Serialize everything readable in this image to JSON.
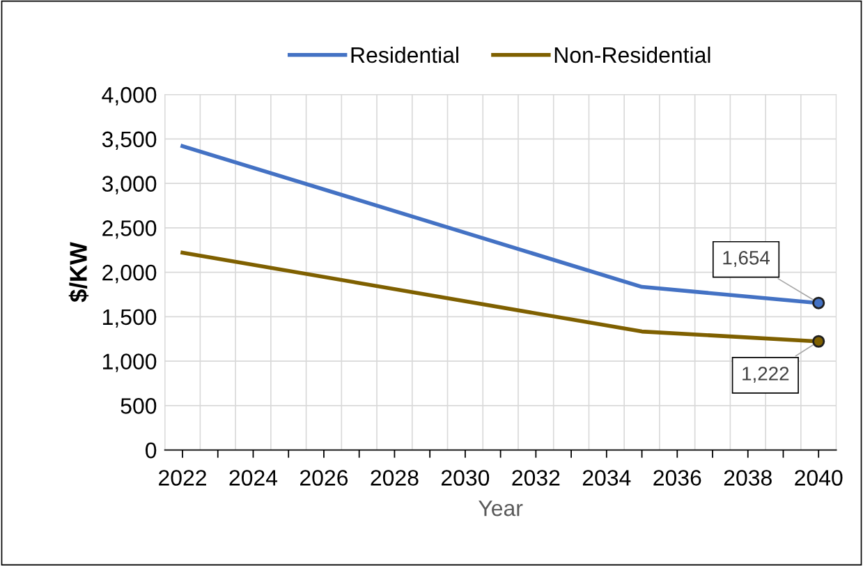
{
  "chart_data": {
    "type": "line",
    "xlabel": "Year",
    "ylabel": "$/KW",
    "series": [
      {
        "name": "Residential",
        "color": "#4472c4",
        "x": [
          2022,
          2035,
          2040
        ],
        "values": [
          3420,
          1835,
          1654
        ]
      },
      {
        "name": "Non-Residential",
        "color": "#7f6000",
        "x": [
          2022,
          2035,
          2040
        ],
        "values": [
          2220,
          1333,
          1222
        ]
      }
    ],
    "annotations": [
      {
        "text": "1,654",
        "x": 2040,
        "y": 1654
      },
      {
        "text": "1,222",
        "x": 2040,
        "y": 1222
      }
    ],
    "xlim": [
      2021.5,
      2040.5
    ],
    "xticks": [
      2022,
      {
        "value": 2023,
        "label": null
      },
      2024,
      {
        "value": 2025,
        "label": null
      },
      2026,
      {
        "value": 2027,
        "label": null
      },
      2028,
      {
        "value": 2029,
        "label": null
      },
      2030,
      {
        "value": 2031,
        "label": null
      },
      2032,
      {
        "value": 2033,
        "label": null
      },
      2034,
      {
        "value": 2035,
        "label": null
      },
      2036,
      {
        "value": 2037,
        "label": null
      },
      2038,
      {
        "value": 2039,
        "label": null
      },
      2040
    ],
    "ylim": [
      0,
      4000
    ],
    "yticks": [
      {
        "value": 0,
        "label": "0"
      },
      {
        "value": 500,
        "label": "500"
      },
      {
        "value": 1000,
        "label": "1,000"
      },
      {
        "value": 1500,
        "label": "1,500"
      },
      {
        "value": 2000,
        "label": "2,000"
      },
      {
        "value": 2500,
        "label": "2,500"
      },
      {
        "value": 3000,
        "label": "3,000"
      },
      {
        "value": 3500,
        "label": "3,500"
      },
      {
        "value": 4000,
        "label": "4,000"
      }
    ],
    "grid": true,
    "legend": "top",
    "line_style": "solid"
  }
}
